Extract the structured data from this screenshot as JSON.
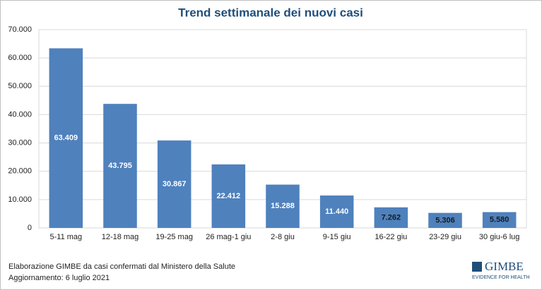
{
  "chart_data": {
    "type": "bar",
    "title": "Trend settimanale dei nuovi casi",
    "categories": [
      "5-11 mag",
      "12-18 mag",
      "19-25 mag",
      "26 mag-1 giu",
      "2-8 giu",
      "9-15 giu",
      "16-22 giu",
      "23-29 giu",
      "30 giu-6 lug"
    ],
    "values": [
      63409,
      43795,
      30867,
      22412,
      15288,
      11440,
      7262,
      5306,
      5580
    ],
    "value_labels": [
      "63.409",
      "43.795",
      "30.867",
      "22.412",
      "15.288",
      "11.440",
      "7.262",
      "5.306",
      "5.580"
    ],
    "color": "#4f81bd",
    "ylim": [
      0,
      70000
    ],
    "yticks": [
      0,
      {
        "value": 10000,
        "label": "10.000"
      },
      {
        "value": 20000,
        "label": "20.000"
      },
      {
        "value": 30000,
        "label": "30.000"
      },
      {
        "value": 40000,
        "label": "40.000"
      },
      {
        "value": 50000,
        "label": "50.000"
      },
      {
        "value": 60000,
        "label": "60.000"
      },
      {
        "value": 70000,
        "label": "70.000"
      }
    ],
    "grid": true,
    "source": "Elaborazione GIMBE da casi confermati dal Ministero della Salute",
    "note": "Aggiornamento: 6 luglio 2021",
    "logo": {
      "name": "GIMBE",
      "tagline": "EVIDENCE FOR HEALTH"
    }
  }
}
